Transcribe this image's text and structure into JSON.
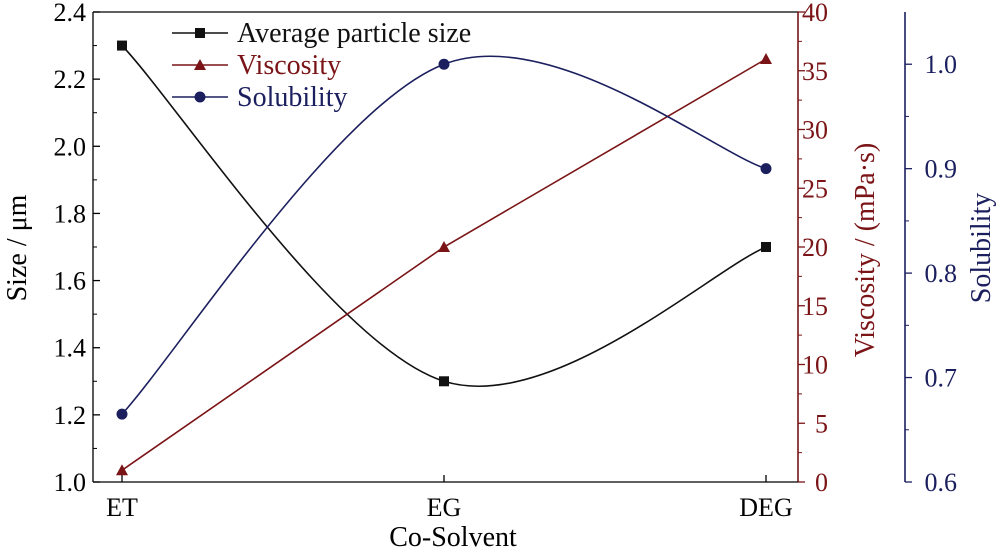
{
  "chart_data": {
    "type": "line",
    "categories": [
      "ET",
      "EG",
      "DEG"
    ],
    "xlabel": "Co-Solvent",
    "series": [
      {
        "name": "Average particle size",
        "axis": "left",
        "marker": "square",
        "color": "#111111",
        "values": [
          2.3,
          1.3,
          1.7
        ]
      },
      {
        "name": "Viscosity",
        "axis": "right1",
        "marker": "triangle",
        "color": "#7a1416",
        "values": [
          1,
          20,
          36
        ]
      },
      {
        "name": "Solubility",
        "axis": "right2",
        "marker": "circle",
        "color": "#1b1f5e",
        "values": [
          0.665,
          1.0,
          0.9
        ]
      }
    ],
    "axes": {
      "left": {
        "label": "Size / μm",
        "ylim": [
          1.0,
          2.4
        ],
        "color": "#000000",
        "ticks": [
          "1.0",
          "1.2",
          "1.4",
          "1.6",
          "1.8",
          "2.0",
          "2.2",
          "2.4"
        ]
      },
      "right1": {
        "label": "Viscosity / (mPa·s)",
        "ylim": [
          0,
          40
        ],
        "color": "#7a1416",
        "ticks": [
          "0",
          "5",
          "10",
          "15",
          "20",
          "25",
          "30",
          "35",
          "40"
        ]
      },
      "right2": {
        "label": "Solubility",
        "ylim": [
          0.6,
          1.05
        ],
        "color": "#1b1f5e",
        "ticks": [
          "0.6",
          "0.7",
          "0.8",
          "0.9",
          "1.0"
        ]
      }
    },
    "legend": {
      "placement": "top-left"
    },
    "grid": false
  }
}
